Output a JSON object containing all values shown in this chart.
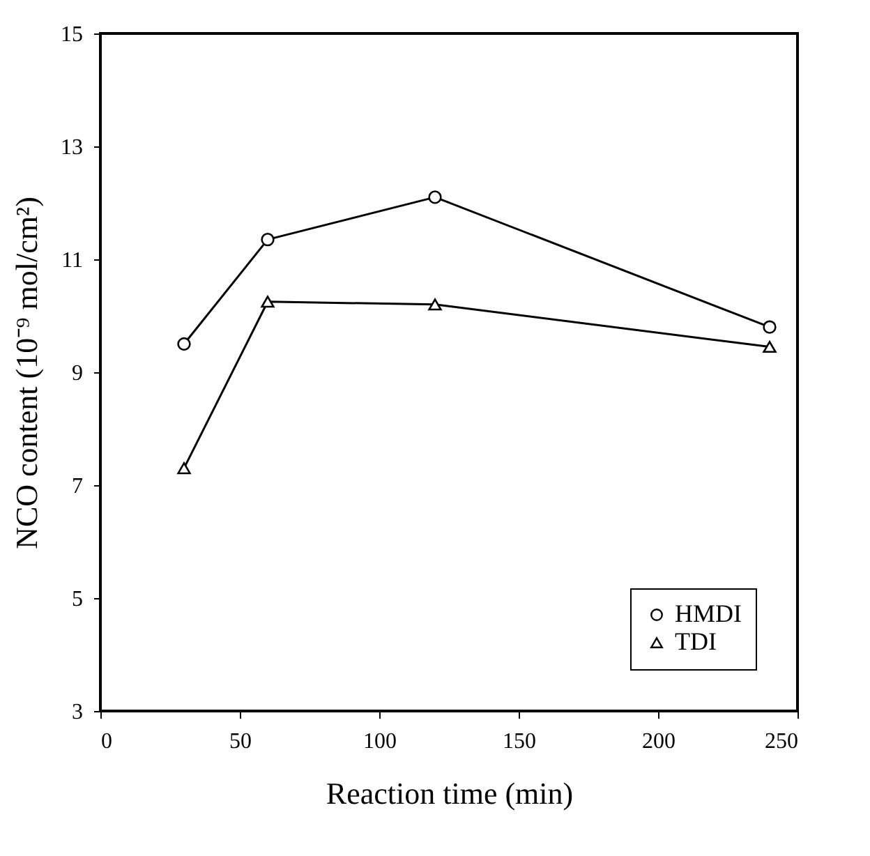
{
  "chart_data": {
    "type": "line",
    "xlabel": "Reaction time (min)",
    "ylabel": "NCO content (10⁻⁹ mol/cm²)",
    "x": [
      30,
      60,
      120,
      240
    ],
    "series": [
      {
        "name": "HMDI",
        "color": "#000000",
        "marker": "circle",
        "values": [
          9.5,
          11.35,
          12.1,
          9.8
        ]
      },
      {
        "name": "TDI",
        "color": "#000000",
        "marker": "triangle",
        "values": [
          7.3,
          10.25,
          10.2,
          9.45
        ]
      }
    ],
    "xlim": [
      0,
      250
    ],
    "xticks": [
      0,
      50,
      100,
      150,
      200,
      250
    ],
    "ylim": [
      3,
      15
    ],
    "yticks": [
      3,
      5,
      7,
      9,
      11,
      13,
      15
    ],
    "grid": false,
    "legend": "bottom right",
    "line_style": "solid"
  }
}
